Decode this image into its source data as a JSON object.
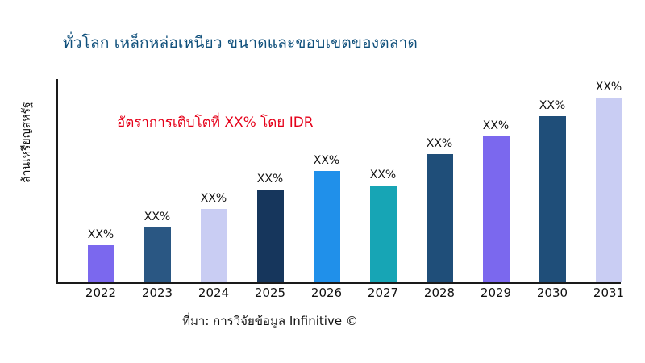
{
  "chart_data": {
    "type": "bar",
    "title": "ทั่วโลก เหล็กหล่อเหนียว ขนาดและขอบเขตของตลาด",
    "ylabel": "ล้านเหรียญสหรัฐ",
    "annotation": "อัตราการเติบโตที่ XX% โดย IDR",
    "source": "ที่มา: การวิจัยข้อมูล Infinitive ©",
    "categories": [
      "2022",
      "2023",
      "2024",
      "2025",
      "2026",
      "2027",
      "2028",
      "2029",
      "2030",
      "2031"
    ],
    "values": [
      46,
      68,
      91,
      115,
      138,
      120,
      159,
      181,
      206,
      229
    ],
    "bar_labels": [
      "XX%",
      "XX%",
      "XX%",
      "XX%",
      "XX%",
      "XX%",
      "XX%",
      "XX%",
      "XX%",
      "XX%"
    ],
    "bar_colors": [
      "#7b68ee",
      "#2a5783",
      "#c9cdf3",
      "#16365c",
      "#2090ea",
      "#17a5b5",
      "#1f4e79",
      "#7b68ee",
      "#1f4e79",
      "#c9cdf3"
    ],
    "ylim": [
      0,
      252
    ],
    "grid": false,
    "legend": false
  },
  "colors": {
    "title": "#10507c",
    "annotation": "#e50019",
    "axis": "#1a1a1a",
    "text": "#111111",
    "background": "#ffffff"
  }
}
